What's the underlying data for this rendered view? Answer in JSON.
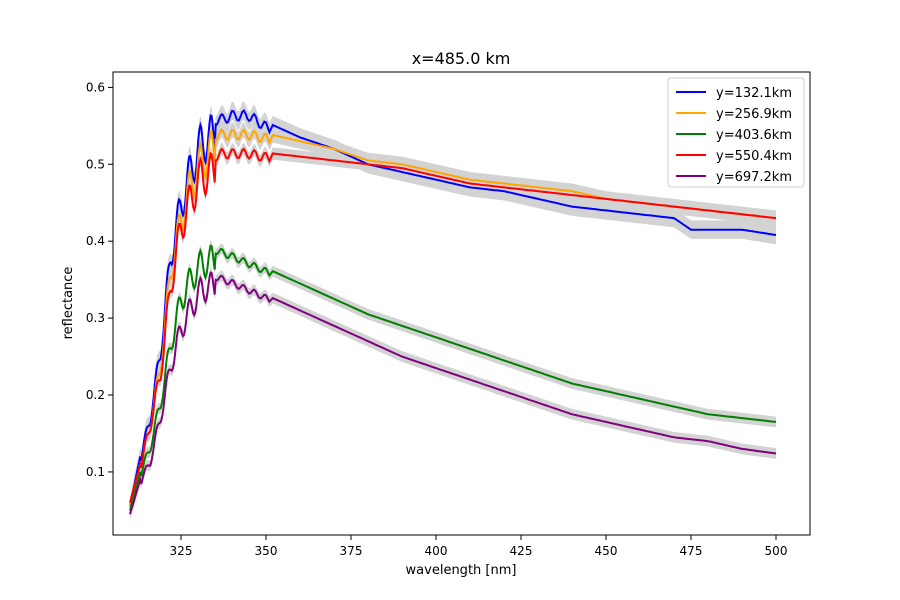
{
  "chart_data": {
    "type": "line",
    "title": "x=485.0 km",
    "xlabel": "wavelength [nm]",
    "ylabel": "reflectance",
    "xlim": [
      305,
      510
    ],
    "ylim": [
      0.018,
      0.62
    ],
    "xticks": [
      325,
      350,
      375,
      400,
      425,
      450,
      475,
      500
    ],
    "xtick_labels": [
      "325",
      "350",
      "375",
      "400",
      "425",
      "450",
      "475",
      "500"
    ],
    "yticks": [
      0.1,
      0.2,
      0.3,
      0.4,
      0.5,
      0.6
    ],
    "ytick_labels": [
      "0.1",
      "0.2",
      "0.3",
      "0.4",
      "0.5",
      "0.6"
    ],
    "grid": false,
    "legend_position": "top-right",
    "uncertainty_band_color": "#d3d3d3",
    "series": [
      {
        "name": "y=132.1km",
        "color": "#0000ff",
        "x": [
          310,
          313,
          316,
          319,
          322,
          325,
          328,
          331,
          334,
          337,
          340,
          345,
          350,
          360,
          370,
          380,
          390,
          400,
          410,
          420,
          430,
          440,
          450,
          460,
          470,
          475,
          480,
          490,
          500
        ],
        "y": [
          0.055,
          0.12,
          0.18,
          0.27,
          0.4,
          0.47,
          0.52,
          0.555,
          0.565,
          0.565,
          0.57,
          0.57,
          0.555,
          0.535,
          0.52,
          0.5,
          0.49,
          0.48,
          0.47,
          0.465,
          0.455,
          0.445,
          0.44,
          0.435,
          0.43,
          0.415,
          0.415,
          0.415,
          0.408
        ],
        "band": 0.012
      },
      {
        "name": "y=256.9km",
        "color": "#ffa500",
        "x": [
          310,
          313,
          316,
          319,
          322,
          325,
          328,
          331,
          334,
          337,
          340,
          345,
          350,
          360,
          370,
          380,
          390,
          400,
          410,
          420,
          430,
          440,
          450,
          460,
          470,
          480,
          490,
          500
        ],
        "y": [
          0.055,
          0.11,
          0.17,
          0.25,
          0.38,
          0.45,
          0.5,
          0.53,
          0.545,
          0.545,
          0.545,
          0.545,
          0.54,
          0.53,
          0.52,
          0.505,
          0.5,
          0.49,
          0.48,
          0.475,
          0.47,
          0.465,
          0.455,
          0.45,
          0.445,
          0.44,
          0.435,
          0.43
        ],
        "band": 0.01
      },
      {
        "name": "y=403.6km",
        "color": "#008000",
        "x": [
          310,
          313,
          316,
          319,
          322,
          325,
          328,
          331,
          334,
          337,
          340,
          345,
          350,
          360,
          370,
          380,
          390,
          400,
          410,
          420,
          430,
          440,
          450,
          460,
          470,
          480,
          490,
          500
        ],
        "y": [
          0.05,
          0.1,
          0.14,
          0.2,
          0.28,
          0.34,
          0.37,
          0.39,
          0.395,
          0.39,
          0.385,
          0.375,
          0.365,
          0.345,
          0.325,
          0.305,
          0.29,
          0.275,
          0.26,
          0.245,
          0.23,
          0.215,
          0.205,
          0.195,
          0.185,
          0.175,
          0.17,
          0.165
        ],
        "band": 0.007
      },
      {
        "name": "y=550.4km",
        "color": "#ff0000",
        "x": [
          310,
          313,
          316,
          319,
          322,
          325,
          328,
          331,
          334,
          337,
          340,
          345,
          350,
          360,
          370,
          380,
          390,
          400,
          410,
          420,
          430,
          440,
          450,
          460,
          470,
          480,
          490,
          500
        ],
        "y": [
          0.06,
          0.11,
          0.17,
          0.24,
          0.36,
          0.44,
          0.48,
          0.51,
          0.515,
          0.52,
          0.52,
          0.52,
          0.515,
          0.51,
          0.505,
          0.5,
          0.495,
          0.485,
          0.475,
          0.47,
          0.465,
          0.46,
          0.455,
          0.45,
          0.445,
          0.44,
          0.435,
          0.43
        ],
        "band": 0.008
      },
      {
        "name": "y=697.2km",
        "color": "#800080",
        "x": [
          310,
          313,
          316,
          319,
          322,
          325,
          328,
          331,
          334,
          337,
          340,
          345,
          350,
          360,
          370,
          380,
          390,
          400,
          410,
          420,
          430,
          440,
          450,
          460,
          470,
          480,
          490,
          500
        ],
        "y": [
          0.045,
          0.09,
          0.12,
          0.18,
          0.25,
          0.3,
          0.33,
          0.355,
          0.36,
          0.355,
          0.35,
          0.34,
          0.33,
          0.31,
          0.29,
          0.27,
          0.25,
          0.235,
          0.22,
          0.205,
          0.19,
          0.175,
          0.165,
          0.155,
          0.145,
          0.14,
          0.13,
          0.124
        ],
        "band": 0.007
      }
    ]
  }
}
